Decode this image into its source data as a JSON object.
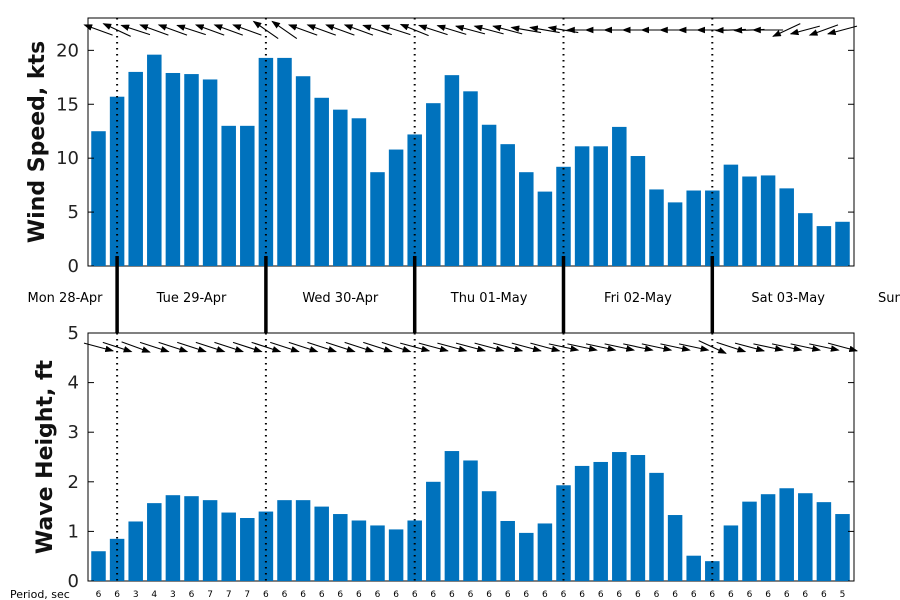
{
  "chart_data": [
    {
      "type": "bar",
      "ylabel": "Wind Speed, kts",
      "ylim": [
        0,
        23
      ],
      "yticks": [
        0,
        5,
        10,
        15,
        20
      ],
      "bar_color": "#0072BD",
      "arrows": "wind direction arrows above each 3-hour bar",
      "values": [
        12.5,
        15.7,
        18.0,
        19.6,
        17.9,
        17.8,
        17.3,
        13.0,
        13.0,
        19.3,
        19.3,
        17.6,
        15.6,
        14.5,
        13.7,
        8.7,
        10.8,
        12.2,
        15.1,
        17.7,
        16.2,
        13.1,
        11.3,
        8.7,
        6.9,
        9.2,
        11.1,
        11.1,
        12.9,
        10.2,
        7.1,
        5.9,
        7.0,
        7.0,
        9.4,
        8.3,
        8.4,
        7.2,
        4.9,
        3.7,
        4.1
      ]
    },
    {
      "type": "bar",
      "ylabel": "Wave Height, ft",
      "ylim": [
        0,
        5
      ],
      "yticks": [
        0,
        1,
        2,
        3,
        4,
        5
      ],
      "bar_color": "#0072BD",
      "arrows": "wave direction arrows above each 3-hour bar",
      "values": [
        0.6,
        0.85,
        1.2,
        1.57,
        1.73,
        1.71,
        1.63,
        1.38,
        1.27,
        1.4,
        1.63,
        1.63,
        1.5,
        1.35,
        1.22,
        1.12,
        1.04,
        1.22,
        2.0,
        2.62,
        2.43,
        1.81,
        1.21,
        0.97,
        1.16,
        1.93,
        2.32,
        2.4,
        2.6,
        2.54,
        2.18,
        1.33,
        0.51,
        0.4,
        1.12,
        1.6,
        1.75,
        1.87,
        1.77,
        1.59,
        1.35
      ],
      "periods": [
        6,
        6,
        3,
        4,
        3,
        6,
        7,
        7,
        7,
        6,
        6,
        6,
        6,
        6,
        6,
        6,
        6,
        6,
        6,
        6,
        6,
        6,
        6,
        6,
        6,
        6,
        6,
        6,
        6,
        6,
        6,
        6,
        6,
        6,
        6,
        6,
        6,
        6,
        6,
        6,
        5
      ],
      "period_label": "Period, sec"
    }
  ],
  "days": [
    "Mon 28-Apr",
    "Tue 29-Apr",
    "Wed 30-Apr",
    "Thu 01-May",
    "Fri 02-May",
    "Sat 03-May",
    "Sun"
  ]
}
